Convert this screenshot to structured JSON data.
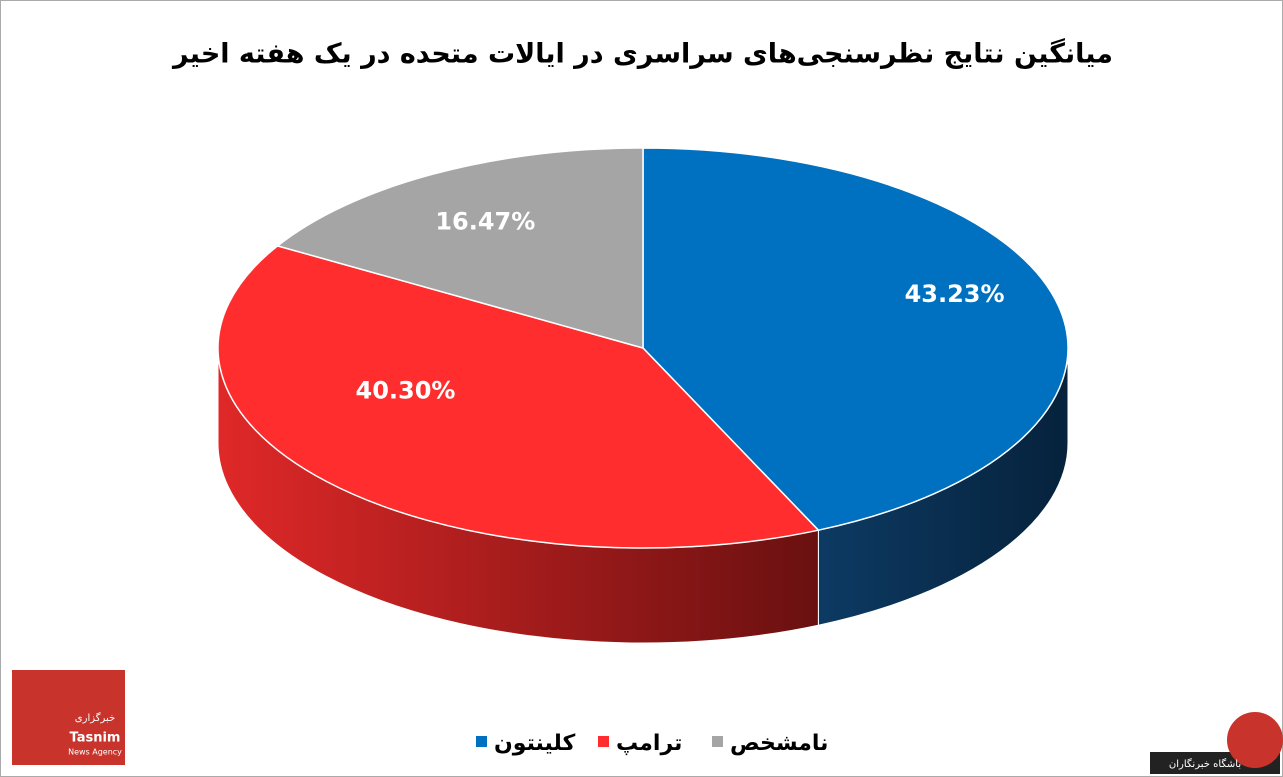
{
  "chart_data": {
    "type": "pie3d",
    "title": "میانگین نتایج نظرسنجی‌های سراسری در ایالات متحده در یک هفته اخیر",
    "categories": [
      "کلینتون",
      "ترامپ",
      "نامشخص"
    ],
    "values": [
      43.23,
      40.3,
      16.47
    ],
    "value_labels": [
      "43.23%",
      "40.30%",
      "16.47%"
    ],
    "colors": [
      "#0070c0",
      "#ff2d2d",
      "#a5a5a5"
    ],
    "side_colors": [
      "#0a2f4f",
      "#c41c1c",
      "#6e6e6e"
    ]
  },
  "watermarks": {
    "agency_fa": "خبرگزاری",
    "agency_en": "Tasnim",
    "agency_sub": "News Agency",
    "corner": "باشگاه خبرنگاران"
  }
}
